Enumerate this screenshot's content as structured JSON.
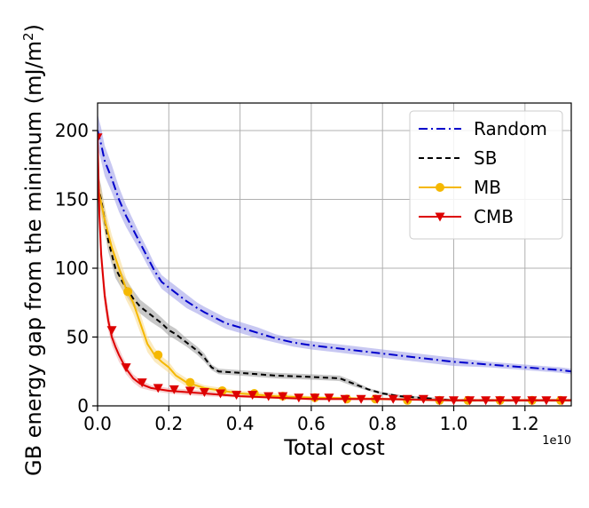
{
  "chart_data": {
    "type": "line",
    "xlabel": "Total cost",
    "ylabel": "GB energy gap from the minimum (mJ/m",
    "ylabel_sup": "2",
    "ylabel_close": ")",
    "x_multiplier_label": "1e10",
    "xlim": [
      0,
      1.33
    ],
    "ylim": [
      0,
      220
    ],
    "x_ticks": [
      0.0,
      0.2,
      0.4,
      0.6,
      0.8,
      1.0,
      1.2
    ],
    "x_tick_labels": [
      "0.0",
      "0.2",
      "0.4",
      "0.6",
      "0.8",
      "1.0",
      "1.2"
    ],
    "y_ticks": [
      0,
      50,
      100,
      150,
      200
    ],
    "y_tick_labels": [
      "0",
      "50",
      "100",
      "150",
      "200"
    ],
    "grid": true,
    "legend_position": "top-right",
    "series": [
      {
        "name": "Random",
        "color": "#0000cc",
        "band_color": "#9a9ae8",
        "line_style": "dashdot",
        "marker": "none",
        "x": [
          0.0,
          0.01,
          0.02,
          0.04,
          0.06,
          0.08,
          0.1,
          0.12,
          0.14,
          0.16,
          0.18,
          0.2,
          0.22,
          0.25,
          0.28,
          0.3,
          0.33,
          0.36,
          0.4,
          0.45,
          0.5,
          0.55,
          0.6,
          0.7,
          0.8,
          0.9,
          1.0,
          1.1,
          1.2,
          1.3,
          1.33
        ],
        "y": [
          200,
          190,
          178,
          165,
          150,
          138,
          128,
          118,
          108,
          98,
          90,
          86,
          82,
          76,
          71,
          68,
          64,
          60,
          57,
          53,
          49,
          46,
          44,
          41,
          38,
          35,
          32,
          30,
          28,
          26,
          25
        ],
        "band": [
          12,
          12,
          11,
          10,
          9,
          8,
          7,
          6,
          6,
          5,
          5,
          5,
          5,
          5,
          4,
          4,
          4,
          4,
          4,
          4,
          3,
          3,
          3,
          3,
          3,
          3,
          3,
          2,
          2,
          2,
          2
        ]
      },
      {
        "name": "SB",
        "color": "#000000",
        "band_color": "#9a9a9a",
        "line_style": "dashed",
        "marker": "none",
        "x": [
          0.0,
          0.01,
          0.02,
          0.03,
          0.05,
          0.07,
          0.1,
          0.12,
          0.15,
          0.18,
          0.2,
          0.22,
          0.25,
          0.28,
          0.3,
          0.32,
          0.34,
          0.4,
          0.5,
          0.6,
          0.68,
          0.72,
          0.76,
          0.8,
          0.85,
          0.9,
          0.95,
          1.0,
          1.2,
          1.33
        ],
        "y": [
          160,
          150,
          135,
          120,
          100,
          90,
          78,
          72,
          66,
          60,
          55,
          52,
          46,
          40,
          35,
          28,
          25,
          24,
          22,
          21,
          20,
          16,
          12,
          9,
          7,
          6,
          5,
          4,
          4,
          4
        ],
        "band": [
          10,
          10,
          9,
          8,
          7,
          6,
          6,
          5,
          5,
          4,
          4,
          4,
          3,
          3,
          3,
          2,
          2,
          2,
          2,
          2,
          2,
          2,
          1,
          1,
          1,
          1,
          1,
          1,
          1,
          1
        ]
      },
      {
        "name": "MB",
        "color": "#f5b800",
        "band_color": "#f8d98a",
        "line_style": "solid",
        "marker": "circle",
        "x": [
          0.0,
          0.02,
          0.04,
          0.06,
          0.08,
          0.1,
          0.12,
          0.14,
          0.16,
          0.18,
          0.2,
          0.22,
          0.25,
          0.3,
          0.35,
          0.4,
          0.5,
          0.6,
          0.8,
          1.0,
          1.2,
          1.33
        ],
        "y": [
          160,
          135,
          115,
          100,
          85,
          75,
          60,
          45,
          37,
          32,
          28,
          22,
          17,
          13,
          11,
          9,
          7,
          6,
          5,
          4,
          4,
          4
        ],
        "band": [
          10,
          10,
          9,
          9,
          8,
          8,
          7,
          6,
          5,
          4,
          4,
          3,
          3,
          2,
          2,
          2,
          2,
          1,
          1,
          1,
          1,
          1
        ],
        "marker_x": [
          0.085,
          0.17,
          0.26,
          0.35,
          0.44,
          0.52,
          0.61,
          0.7,
          0.78,
          0.87,
          0.96,
          1.04,
          1.13,
          1.22,
          1.3
        ],
        "marker_y": [
          83,
          37,
          17,
          11,
          9,
          7,
          6,
          5,
          5,
          4,
          4,
          4,
          4,
          4,
          4
        ]
      },
      {
        "name": "CMB",
        "color": "#dd0000",
        "band_color": "#eeaaaa",
        "line_style": "solid",
        "marker": "triangle-down",
        "x": [
          0.0,
          0.005,
          0.01,
          0.02,
          0.03,
          0.04,
          0.05,
          0.06,
          0.07,
          0.08,
          0.1,
          0.12,
          0.15,
          0.2,
          0.25,
          0.3,
          0.4,
          0.5,
          0.6,
          0.8,
          1.0,
          1.2,
          1.33
        ],
        "y": [
          195,
          140,
          110,
          80,
          62,
          50,
          43,
          37,
          32,
          27,
          20,
          16,
          13,
          11,
          10,
          9,
          7,
          6,
          5,
          5,
          4,
          4,
          4
        ],
        "band": [
          12,
          12,
          11,
          9,
          7,
          6,
          5,
          5,
          4,
          4,
          3,
          3,
          2,
          2,
          2,
          2,
          1,
          1,
          1,
          1,
          1,
          1,
          1
        ],
        "marker_x": [
          0.0,
          0.04,
          0.08,
          0.125,
          0.17,
          0.215,
          0.26,
          0.3,
          0.345,
          0.39,
          0.435,
          0.48,
          0.52,
          0.565,
          0.61,
          0.65,
          0.695,
          0.74,
          0.785,
          0.83,
          0.87,
          0.915,
          0.96,
          1.0,
          1.045,
          1.09,
          1.13,
          1.175,
          1.22,
          1.26,
          1.305
        ],
        "marker_y": [
          195,
          55,
          28,
          17,
          13,
          12,
          11,
          10,
          9,
          8,
          8,
          7,
          7,
          6,
          6,
          6,
          5,
          5,
          5,
          5,
          5,
          5,
          4,
          4,
          4,
          4,
          4,
          4,
          4,
          4,
          4
        ]
      }
    ]
  }
}
